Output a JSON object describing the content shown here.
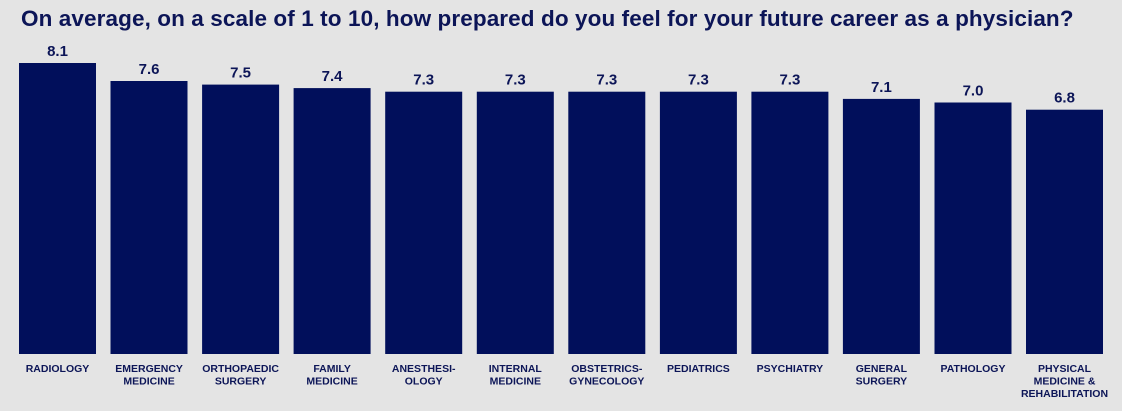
{
  "chart_data": {
    "type": "bar",
    "title": "On average, on a scale of 1 to 10, how prepared do you feel for your future career as a physician?",
    "categories": [
      "RADIOLOGY",
      "EMERGENCY MEDICINE",
      "ORTHOPAEDIC SURGERY",
      "FAMILY MEDICINE",
      "ANESTHESI- OLOGY",
      "INTERNAL MEDICINE",
      "OBSTETRICS- GYNECOLOGY",
      "PEDIATRICS",
      "PSYCHIATRY",
      "GENERAL SURGERY",
      "PATHOLOGY",
      "PHYSICAL MEDICINE & REHABILITATION"
    ],
    "category_lines": [
      [
        "RADIOLOGY"
      ],
      [
        "EMERGENCY",
        "MEDICINE"
      ],
      [
        "ORTHOPAEDIC",
        "SURGERY"
      ],
      [
        "FAMILY",
        "MEDICINE"
      ],
      [
        "ANESTHESI-",
        "OLOGY"
      ],
      [
        "INTERNAL",
        "MEDICINE"
      ],
      [
        "OBSTETRICS-",
        "GYNECOLOGY"
      ],
      [
        "PEDIATRICS"
      ],
      [
        "PSYCHIATRY"
      ],
      [
        "GENERAL",
        "SURGERY"
      ],
      [
        "PATHOLOGY"
      ],
      [
        "PHYSICAL",
        "MEDICINE &",
        "REHABILITATION"
      ]
    ],
    "values": [
      8.1,
      7.6,
      7.5,
      7.4,
      7.3,
      7.3,
      7.3,
      7.3,
      7.3,
      7.1,
      7.0,
      6.8
    ],
    "value_labels": [
      "8.1",
      "7.6",
      "7.5",
      "7.4",
      "7.3",
      "7.3",
      "7.3",
      "7.3",
      "7.3",
      "7.1",
      "7.0",
      "6.8"
    ],
    "ylim": [
      0,
      10
    ],
    "xlabel": "",
    "ylabel": "",
    "grid": false,
    "bar_color": "#010f5b",
    "text_color": "#0c1557",
    "background_color": "#e4e4e4"
  }
}
